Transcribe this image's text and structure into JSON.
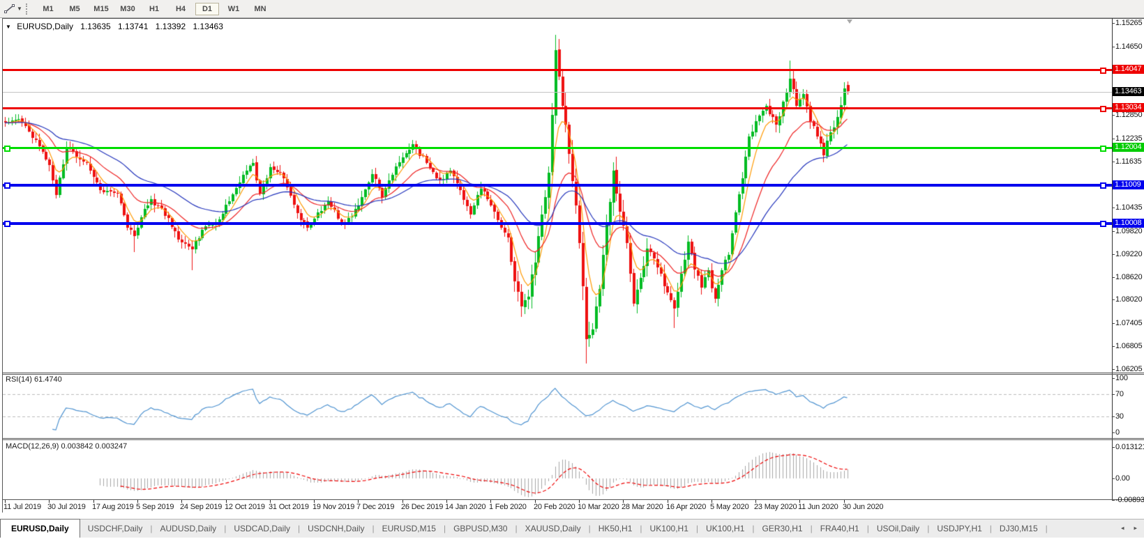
{
  "toolbar": {
    "tool_icon": "line-studies-tool",
    "timeframes": [
      {
        "label": "M1",
        "active": false
      },
      {
        "label": "M5",
        "active": false
      },
      {
        "label": "M15",
        "active": false
      },
      {
        "label": "M30",
        "active": false
      },
      {
        "label": "H1",
        "active": false
      },
      {
        "label": "H4",
        "active": false
      },
      {
        "label": "D1",
        "active": true
      },
      {
        "label": "W1",
        "active": false
      },
      {
        "label": "MN",
        "active": false
      }
    ]
  },
  "chart_title": {
    "symbol": "EURUSD,Daily",
    "open": "1.13635",
    "high": "1.13741",
    "low": "1.13392",
    "close": "1.13463"
  },
  "price_axis": {
    "labels": [
      "1.15265",
      "1.14650",
      "1.12850",
      "1.12235",
      "1.11635",
      "1.10435",
      "1.09820",
      "1.09220",
      "1.08620",
      "1.08020",
      "1.07405",
      "1.06805",
      "1.06205"
    ],
    "badges": [
      {
        "value": "1.14047",
        "bg": "#ee0000",
        "fg": "#ffffff"
      },
      {
        "value": "1.13463",
        "bg": "#000000",
        "fg": "#ffffff"
      },
      {
        "value": "1.13034",
        "bg": "#ee0000",
        "fg": "#ffffff"
      },
      {
        "value": "1.12004",
        "bg": "#00cc00",
        "fg": "#ffffff"
      },
      {
        "value": "1.11009",
        "bg": "#0000ee",
        "fg": "#ffffff"
      },
      {
        "value": "1.10008",
        "bg": "#0000ee",
        "fg": "#ffffff"
      }
    ]
  },
  "time_axis": [
    "11 Jul 2019",
    "30 Jul 2019",
    "17 Aug 2019",
    "5 Sep 2019",
    "24 Sep 2019",
    "12 Oct 2019",
    "31 Oct 2019",
    "19 Nov 2019",
    "7 Dec 2019",
    "26 Dec 2019",
    "14 Jan 2020",
    "1 Feb 2020",
    "20 Feb 2020",
    "10 Mar 2020",
    "28 Mar 2020",
    "16 Apr 2020",
    "5 May 2020",
    "23 May 2020",
    "11 Jun 2020",
    "30 Jun 2020"
  ],
  "rsi_panel": {
    "label": "RSI(14) 61.4740",
    "value": 61.474,
    "axis": [
      "100",
      "70",
      "30",
      "0"
    ],
    "line_color": "#4f93d0",
    "level_lines": [
      70,
      30
    ]
  },
  "macd_panel": {
    "label": "MACD(12,26,9) 0.003842 0.003247",
    "main": 0.003842,
    "signal": 0.003247,
    "axis": [
      "0.013121",
      "0.00",
      "-0.008933"
    ],
    "bar_color": "#a6a6a6",
    "signal_color": "#ee0000"
  },
  "tabs": [
    {
      "label": "EURUSD,Daily",
      "active": true
    },
    {
      "label": "USDCHF,Daily",
      "active": false
    },
    {
      "label": "AUDUSD,Daily",
      "active": false
    },
    {
      "label": "USDCAD,Daily",
      "active": false
    },
    {
      "label": "USDCNH,Daily",
      "active": false
    },
    {
      "label": "EURUSD,M15",
      "active": false
    },
    {
      "label": "GBPUSD,M30",
      "active": false
    },
    {
      "label": "XAUUSD,Daily",
      "active": false
    },
    {
      "label": "HK50,H1",
      "active": false
    },
    {
      "label": "UK100,H1",
      "active": false
    },
    {
      "label": "UK100,H1",
      "active": false
    },
    {
      "label": "GER30,H1",
      "active": false
    },
    {
      "label": "FRA40,H1",
      "active": false
    },
    {
      "label": "USOil,Daily",
      "active": false
    },
    {
      "label": "USDJPY,H1",
      "active": false
    },
    {
      "label": "DJ30,M15",
      "active": false
    }
  ],
  "chart_data": {
    "type": "candlestick+indicators",
    "symbol": "EURUSD",
    "timeframe": "Daily",
    "bars": 249,
    "price_range": [
      1.06205,
      1.15265
    ],
    "current_price": 1.13463,
    "bull_color": "#00bb22",
    "bear_color": "#ee1111",
    "horizontal_lines": [
      {
        "price": 1.14047,
        "color": "#ee0000",
        "width": 3,
        "handles": "right"
      },
      {
        "price": 1.13034,
        "color": "#ee0000",
        "width": 3,
        "handles": "right"
      },
      {
        "price": 1.12004,
        "color": "#00dd00",
        "width": 3,
        "handles": "both"
      },
      {
        "price": 1.11009,
        "color": "#0000ee",
        "width": 4,
        "handles": "both"
      },
      {
        "price": 1.10008,
        "color": "#0000ee",
        "width": 4,
        "handles": "both"
      }
    ],
    "moving_averages": [
      {
        "period": 6,
        "color": "#ff9900"
      },
      {
        "period": 18,
        "color": "#ee2222"
      },
      {
        "period": 40,
        "color": "#2233bb"
      }
    ],
    "rsi_period": 14,
    "macd_params": [
      12,
      26,
      9
    ],
    "close_anchors": [
      [
        0,
        1.1265
      ],
      [
        4,
        1.1275
      ],
      [
        9,
        1.122
      ],
      [
        13,
        1.1155
      ],
      [
        15,
        1.1075
      ],
      [
        18,
        1.12
      ],
      [
        24,
        1.116
      ],
      [
        28,
        1.109
      ],
      [
        33,
        1.108
      ],
      [
        36,
        1.099
      ],
      [
        38,
        1.097
      ],
      [
        41,
        1.104
      ],
      [
        43,
        1.1065
      ],
      [
        48,
        1.1015
      ],
      [
        51,
        1.096
      ],
      [
        55,
        1.0935
      ],
      [
        58,
        1.0985
      ],
      [
        62,
        1.1005
      ],
      [
        66,
        1.106
      ],
      [
        70,
        1.113
      ],
      [
        73,
        1.116
      ],
      [
        75,
        1.108
      ],
      [
        78,
        1.115
      ],
      [
        82,
        1.112
      ],
      [
        86,
        1.103
      ],
      [
        89,
        1.099
      ],
      [
        91,
        1.1015
      ],
      [
        95,
        1.106
      ],
      [
        99,
        1.1005
      ],
      [
        102,
        1.102
      ],
      [
        106,
        1.109
      ],
      [
        108,
        1.1131
      ],
      [
        111,
        1.107
      ],
      [
        113,
        1.1115
      ],
      [
        117,
        1.1175
      ],
      [
        120,
        1.121
      ],
      [
        124,
        1.116
      ],
      [
        128,
        1.1115
      ],
      [
        131,
        1.114
      ],
      [
        134,
        1.109
      ],
      [
        137,
        1.1025
      ],
      [
        140,
        1.1093
      ],
      [
        143,
        1.105
      ],
      [
        146,
        1.099
      ],
      [
        148,
        1.0965
      ],
      [
        150,
        1.085
      ],
      [
        152,
        1.0785
      ],
      [
        154,
        1.081
      ],
      [
        156,
        1.09
      ],
      [
        158,
        1.1026
      ],
      [
        160,
        1.1135
      ],
      [
        162,
        1.1456
      ],
      [
        164,
        1.131
      ],
      [
        166,
        1.1184
      ],
      [
        168,
        1.105
      ],
      [
        169,
        1.095
      ],
      [
        171,
        1.07
      ],
      [
        173,
        1.0725
      ],
      [
        175,
        1.083
      ],
      [
        177,
        1.1
      ],
      [
        179,
        1.114
      ],
      [
        181,
        1.1031
      ],
      [
        183,
        1.095
      ],
      [
        185,
        1.0791
      ],
      [
        187,
        1.086
      ],
      [
        189,
        1.0935
      ],
      [
        191,
        1.091
      ],
      [
        193,
        1.087
      ],
      [
        195,
        1.082
      ],
      [
        197,
        1.078
      ],
      [
        199,
        1.087
      ],
      [
        201,
        1.0955
      ],
      [
        203,
        1.088
      ],
      [
        205,
        1.0834
      ],
      [
        207,
        1.088
      ],
      [
        209,
        1.0805
      ],
      [
        211,
        1.088
      ],
      [
        213,
        1.092
      ],
      [
        215,
        1.103
      ],
      [
        217,
        1.112
      ],
      [
        219,
        1.123
      ],
      [
        221,
        1.127
      ],
      [
        224,
        1.131
      ],
      [
        227,
        1.126
      ],
      [
        229,
        1.132
      ],
      [
        231,
        1.138
      ],
      [
        233,
        1.131
      ],
      [
        235,
        1.134
      ],
      [
        237,
        1.127
      ],
      [
        239,
        1.123
      ],
      [
        241,
        1.118
      ],
      [
        243,
        1.124
      ],
      [
        245,
        1.128
      ],
      [
        247,
        1.1355
      ],
      [
        248,
        1.13463
      ]
    ],
    "wick_overrides": {
      "38": {
        "low": 1.0926
      },
      "55": {
        "low": 1.0879
      },
      "162": {
        "high": 1.1495
      },
      "171": {
        "low": 1.0636
      },
      "197": {
        "low": 1.0727
      },
      "231": {
        "high": 1.1428
      }
    },
    "last_candle": {
      "open": 1.13635,
      "high": 1.13741,
      "low": 1.13392,
      "close": 1.13463
    }
  }
}
